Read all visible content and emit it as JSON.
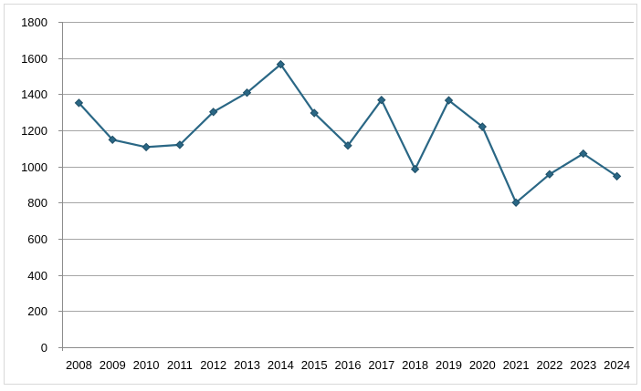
{
  "chart_data": {
    "type": "line",
    "title": "",
    "xlabel": "",
    "ylabel": "",
    "x": [
      "2008",
      "2009",
      "2010",
      "2011",
      "2012",
      "2013",
      "2014",
      "2015",
      "2016",
      "2017",
      "2018",
      "2019",
      "2020",
      "2021",
      "2022",
      "2023",
      "2024"
    ],
    "series": [
      {
        "values": [
          1352,
          1148,
          1107,
          1120,
          1302,
          1408,
          1565,
          1296,
          1116,
          1368,
          985,
          1366,
          1220,
          800,
          957,
          1071,
          946
        ]
      }
    ],
    "ylim": [
      0,
      1800
    ],
    "yticks": [
      "0",
      "200",
      "400",
      "600",
      "800",
      "1000",
      "1200",
      "1400",
      "1600",
      "1800"
    ],
    "grid": true,
    "legend": "none",
    "colors": {
      "line": "#2a6785",
      "marker_fill": "#2a6785",
      "marker_stroke": "#1f4e66",
      "grid": "#a6a6a6",
      "axis": "#8c8c8c"
    }
  }
}
